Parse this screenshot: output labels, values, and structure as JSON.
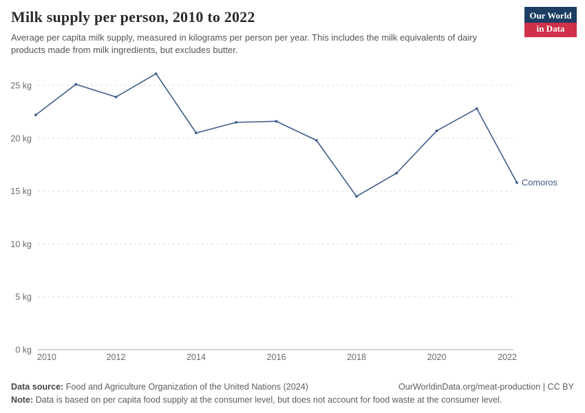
{
  "header": {
    "title": "Milk supply per person, 2010 to 2022",
    "subtitle": "Average per capita milk supply, measured in kilograms per person per year. This includes the milk equivalents of dairy products made from milk ingredients, but excludes butter.",
    "logo": {
      "line1": "Our World",
      "line2": "in Data",
      "bg_color": "#1d3d63",
      "accent_color": "#cf304a"
    }
  },
  "chart_data": {
    "type": "line",
    "title": "Milk supply per person, 2010 to 2022",
    "x": [
      2010,
      2011,
      2012,
      2013,
      2014,
      2015,
      2016,
      2017,
      2018,
      2019,
      2020,
      2021,
      2022
    ],
    "series": [
      {
        "name": "Comoros",
        "color": "#3e5c8a",
        "values": [
          22.2,
          25.1,
          23.9,
          26.1,
          20.5,
          21.5,
          21.6,
          19.8,
          14.5,
          16.7,
          20.7,
          22.8,
          15.8
        ]
      }
    ],
    "xlabel": "",
    "ylabel": "",
    "y_ticks": [
      0,
      5,
      10,
      15,
      20,
      25
    ],
    "y_tick_format": "{v} kg",
    "x_ticks": [
      2010,
      2012,
      2014,
      2016,
      2018,
      2020,
      2022
    ],
    "ylim": [
      0,
      26.8
    ],
    "grid": "horizontal-dashed",
    "legend": "end-of-line-label",
    "tick_color": "#6b6b6b",
    "grid_color": "#dcdcdc",
    "axis_color": "#a9a9a9"
  },
  "footer": {
    "source_label": "Data source:",
    "source_text": "Food and Agriculture Organization of the United Nations (2024)",
    "attribution": "OurWorldinData.org/meat-production | CC BY",
    "note_label": "Note:",
    "note_text": "Data is based on per capita food supply at the consumer level, but does not account for food waste at the consumer level."
  }
}
